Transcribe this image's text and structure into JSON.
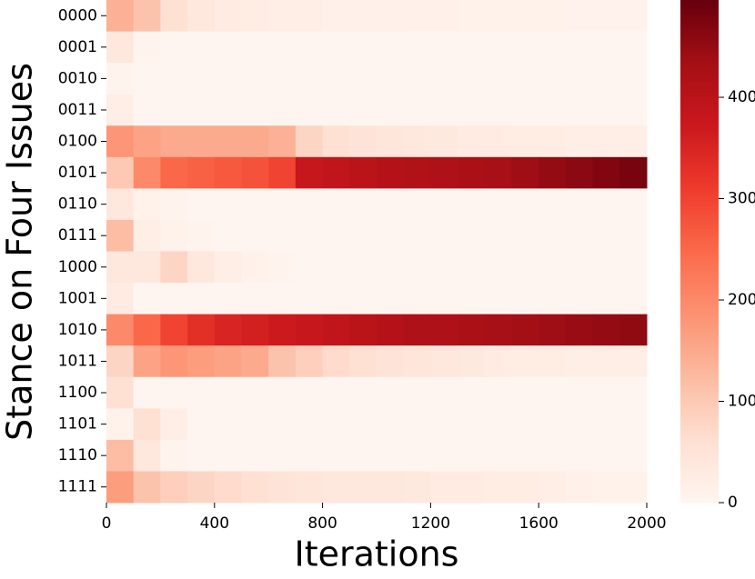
{
  "chart_data": {
    "type": "heatmap",
    "xlabel": "Iterations",
    "ylabel": "Stance on Four Issues",
    "categories": [
      "0000",
      "0001",
      "0010",
      "0011",
      "0100",
      "0101",
      "0110",
      "0111",
      "1000",
      "1001",
      "1010",
      "1011",
      "1100",
      "1101",
      "1110",
      "1111"
    ],
    "bins": [
      0,
      100,
      200,
      300,
      400,
      500,
      600,
      700,
      800,
      900,
      1000,
      1100,
      1200,
      1300,
      1400,
      1500,
      1600,
      1700,
      1800,
      1900,
      2000
    ],
    "values": [
      [
        140,
        110,
        60,
        40,
        30,
        25,
        20,
        20,
        15,
        15,
        15,
        12,
        12,
        10,
        10,
        10,
        10,
        8,
        8,
        8
      ],
      [
        40,
        5,
        0,
        0,
        0,
        0,
        0,
        0,
        0,
        0,
        0,
        0,
        0,
        0,
        0,
        0,
        0,
        0,
        0,
        0
      ],
      [
        5,
        0,
        0,
        0,
        0,
        0,
        0,
        0,
        0,
        0,
        0,
        0,
        0,
        0,
        0,
        0,
        0,
        0,
        0,
        0
      ],
      [
        20,
        0,
        0,
        0,
        0,
        0,
        0,
        0,
        0,
        0,
        0,
        0,
        0,
        0,
        0,
        0,
        0,
        0,
        0,
        0
      ],
      [
        180,
        160,
        150,
        150,
        150,
        150,
        140,
        80,
        60,
        50,
        45,
        40,
        35,
        30,
        30,
        25,
        25,
        20,
        20,
        20
      ],
      [
        100,
        200,
        250,
        260,
        270,
        280,
        300,
        380,
        390,
        400,
        410,
        415,
        420,
        425,
        430,
        440,
        450,
        460,
        470,
        480
      ],
      [
        40,
        10,
        5,
        0,
        0,
        0,
        0,
        0,
        0,
        0,
        0,
        0,
        0,
        0,
        0,
        0,
        0,
        0,
        0,
        0
      ],
      [
        120,
        20,
        10,
        5,
        0,
        0,
        0,
        0,
        0,
        0,
        0,
        0,
        0,
        0,
        0,
        0,
        0,
        0,
        0,
        0
      ],
      [
        40,
        40,
        80,
        40,
        20,
        10,
        5,
        0,
        0,
        0,
        0,
        0,
        0,
        0,
        0,
        0,
        0,
        0,
        0,
        0
      ],
      [
        30,
        0,
        0,
        0,
        0,
        0,
        0,
        0,
        0,
        0,
        0,
        0,
        0,
        0,
        0,
        0,
        0,
        0,
        0,
        0
      ],
      [
        200,
        250,
        300,
        330,
        350,
        360,
        370,
        380,
        390,
        400,
        410,
        420,
        420,
        425,
        430,
        435,
        440,
        445,
        450,
        455
      ],
      [
        80,
        160,
        180,
        170,
        160,
        150,
        110,
        90,
        70,
        60,
        50,
        45,
        40,
        35,
        30,
        25,
        25,
        20,
        20,
        20
      ],
      [
        60,
        0,
        0,
        0,
        0,
        0,
        0,
        0,
        0,
        0,
        0,
        0,
        0,
        0,
        0,
        0,
        0,
        0,
        0,
        0
      ],
      [
        10,
        60,
        20,
        0,
        0,
        0,
        0,
        0,
        0,
        0,
        0,
        0,
        0,
        0,
        0,
        0,
        0,
        0,
        0,
        0
      ],
      [
        120,
        40,
        5,
        0,
        0,
        0,
        0,
        0,
        0,
        0,
        0,
        0,
        0,
        0,
        0,
        0,
        0,
        0,
        0,
        0
      ],
      [
        170,
        110,
        90,
        80,
        70,
        60,
        50,
        45,
        40,
        40,
        40,
        35,
        30,
        30,
        25,
        25,
        20,
        15,
        10,
        10
      ]
    ],
    "xlim": [
      0,
      2000
    ],
    "xticks": [
      0,
      400,
      800,
      1200,
      1600,
      2000
    ],
    "vlim": [
      0,
      496
    ],
    "cticks": [
      0,
      100,
      200,
      300,
      400
    ],
    "colormap": [
      "#fff5f0",
      "#fee0d2",
      "#fcbba1",
      "#fc9272",
      "#fb6a4a",
      "#ef3b2c",
      "#cb181d",
      "#a50f15",
      "#67000d"
    ]
  }
}
